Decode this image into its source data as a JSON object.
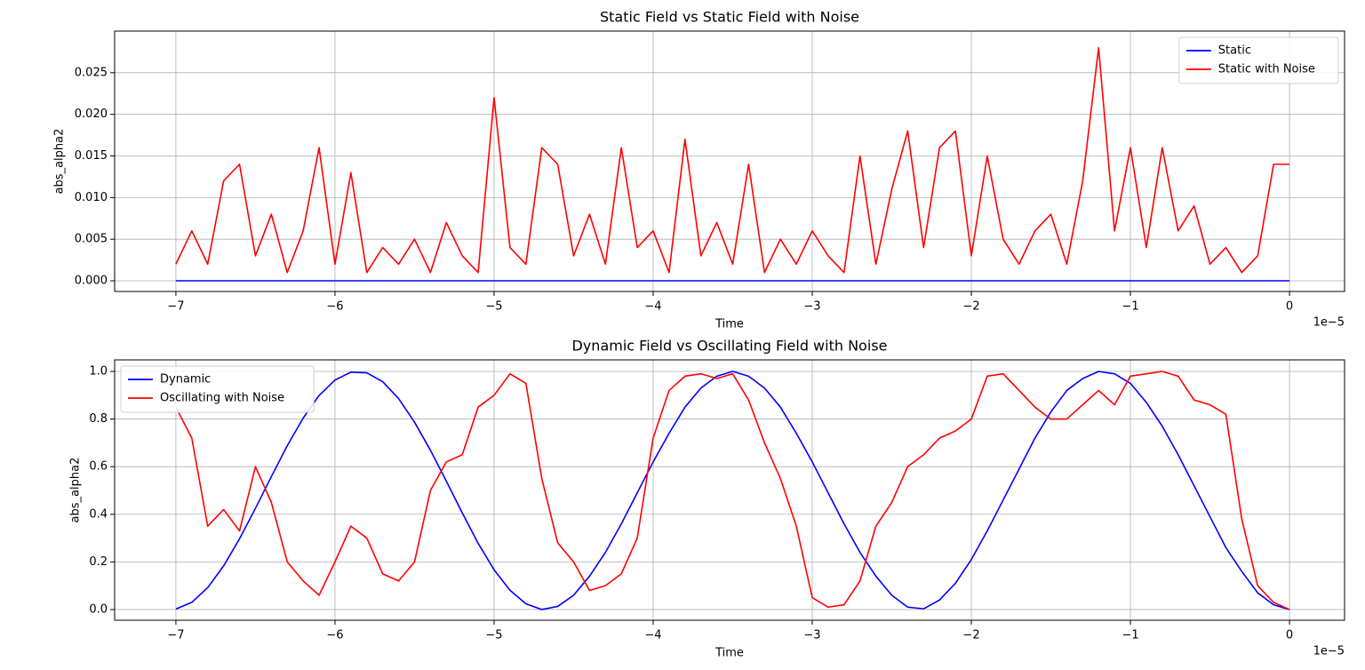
{
  "chart_data": [
    {
      "type": "line",
      "title": "Static Field vs Static Field with Noise",
      "x_label": "Time",
      "y_label": "abs_alpha2",
      "x_offset_label": "1e−5",
      "x": [
        -7.0,
        -6.9,
        -6.8,
        -6.7,
        -6.6,
        -6.5,
        -6.4,
        -6.3,
        -6.2,
        -6.1,
        -6.0,
        -5.9,
        -5.8,
        -5.7,
        -5.6,
        -5.5,
        -5.4,
        -5.3,
        -5.2,
        -5.1,
        -5.0,
        -4.9,
        -4.8,
        -4.7,
        -4.6,
        -4.5,
        -4.4,
        -4.3,
        -4.2,
        -4.1,
        -4.0,
        -3.9,
        -3.8,
        -3.7,
        -3.6,
        -3.5,
        -3.4,
        -3.3,
        -3.2,
        -3.1,
        -3.0,
        -2.9,
        -2.8,
        -2.7,
        -2.6,
        -2.5,
        -2.4,
        -2.3,
        -2.2,
        -2.1,
        -2.0,
        -1.9,
        -1.8,
        -1.7,
        -1.6,
        -1.5,
        -1.4,
        -1.3,
        -1.2,
        -1.1,
        -1.0,
        -0.9,
        -0.8,
        -0.7,
        -0.6,
        -0.5,
        -0.4,
        -0.3,
        -0.2,
        -0.1,
        0.0
      ],
      "series": [
        {
          "name": "Static",
          "color": "#0000ff",
          "values": [
            0,
            0,
            0,
            0,
            0,
            0,
            0,
            0,
            0,
            0,
            0,
            0,
            0,
            0,
            0,
            0,
            0,
            0,
            0,
            0,
            0,
            0,
            0,
            0,
            0,
            0,
            0,
            0,
            0,
            0,
            0,
            0,
            0,
            0,
            0,
            0,
            0,
            0,
            0,
            0,
            0,
            0,
            0,
            0,
            0,
            0,
            0,
            0,
            0,
            0,
            0,
            0,
            0,
            0,
            0,
            0,
            0,
            0,
            0,
            0,
            0,
            0,
            0,
            0,
            0,
            0,
            0,
            0,
            0,
            0,
            0
          ]
        },
        {
          "name": "Static with Noise",
          "color": "#ff0000",
          "values": [
            0.002,
            0.006,
            0.002,
            0.012,
            0.014,
            0.003,
            0.008,
            0.001,
            0.006,
            0.016,
            0.002,
            0.013,
            0.001,
            0.004,
            0.002,
            0.005,
            0.001,
            0.007,
            0.003,
            0.001,
            0.022,
            0.004,
            0.002,
            0.016,
            0.014,
            0.003,
            0.008,
            0.002,
            0.016,
            0.004,
            0.006,
            0.001,
            0.017,
            0.003,
            0.007,
            0.002,
            0.014,
            0.001,
            0.005,
            0.002,
            0.006,
            0.003,
            0.001,
            0.015,
            0.002,
            0.011,
            0.018,
            0.004,
            0.016,
            0.018,
            0.003,
            0.015,
            0.005,
            0.002,
            0.006,
            0.008,
            0.002,
            0.012,
            0.028,
            0.006,
            0.016,
            0.004,
            0.016,
            0.006,
            0.009,
            0.002,
            0.004,
            0.001,
            0.003,
            0.014,
            0.014
          ]
        }
      ],
      "xlim": [
        -7.385,
        0.346
      ],
      "ylim": [
        -0.00128,
        0.03
      ],
      "xticks": [
        {
          "value": -7,
          "label": "−7"
        },
        {
          "value": -6,
          "label": "−6"
        },
        {
          "value": -5,
          "label": "−5"
        },
        {
          "value": -4,
          "label": "−4"
        },
        {
          "value": -3,
          "label": "−3"
        },
        {
          "value": -2,
          "label": "−2"
        },
        {
          "value": -1,
          "label": "−1"
        },
        0
      ],
      "yticks": [
        {
          "value": 0,
          "label": "0.000"
        },
        {
          "value": 0.005,
          "label": "0.005"
        },
        {
          "value": 0.01,
          "label": "0.010"
        },
        {
          "value": 0.015,
          "label": "0.015"
        },
        {
          "value": 0.02,
          "label": "0.020"
        },
        {
          "value": 0.025,
          "label": "0.025"
        }
      ],
      "grid": true,
      "legend": "upper right"
    },
    {
      "type": "line",
      "title": "Dynamic Field vs Oscillating Field with Noise",
      "x_label": "Time",
      "y_label": "abs_alpha2",
      "x_offset_label": "1e−5",
      "x": [
        -7.0,
        -6.9,
        -6.8,
        -6.7,
        -6.6,
        -6.5,
        -6.4,
        -6.3,
        -6.2,
        -6.1,
        -6.0,
        -5.9,
        -5.8,
        -5.7,
        -5.6,
        -5.5,
        -5.4,
        -5.3,
        -5.2,
        -5.1,
        -5.0,
        -4.9,
        -4.8,
        -4.7,
        -4.6,
        -4.5,
        -4.4,
        -4.3,
        -4.2,
        -4.1,
        -4.0,
        -3.9,
        -3.8,
        -3.7,
        -3.6,
        -3.5,
        -3.4,
        -3.3,
        -3.2,
        -3.1,
        -3.0,
        -2.9,
        -2.8,
        -2.7,
        -2.6,
        -2.5,
        -2.4,
        -2.3,
        -2.2,
        -2.1,
        -2.0,
        -1.9,
        -1.8,
        -1.7,
        -1.6,
        -1.5,
        -1.4,
        -1.3,
        -1.2,
        -1.1,
        -1.0,
        -0.9,
        -0.8,
        -0.7,
        -0.6,
        -0.5,
        -0.4,
        -0.3,
        -0.2,
        -0.1,
        0.0
      ],
      "series": [
        {
          "name": "Dynamic",
          "color": "#0000ff",
          "values": [
            0.002,
            0.03,
            0.092,
            0.183,
            0.297,
            0.425,
            0.558,
            0.688,
            0.804,
            0.899,
            0.964,
            0.997,
            0.994,
            0.957,
            0.886,
            0.787,
            0.669,
            0.539,
            0.406,
            0.278,
            0.167,
            0.081,
            0.024,
            0.0,
            0.013,
            0.06,
            0.14,
            0.24,
            0.36,
            0.49,
            0.62,
            0.74,
            0.85,
            0.93,
            0.98,
            1.0,
            0.98,
            0.93,
            0.85,
            0.74,
            0.62,
            0.49,
            0.36,
            0.24,
            0.14,
            0.06,
            0.01,
            0.003,
            0.04,
            0.11,
            0.21,
            0.33,
            0.46,
            0.59,
            0.72,
            0.83,
            0.92,
            0.97,
            1.0,
            0.99,
            0.95,
            0.87,
            0.77,
            0.65,
            0.52,
            0.39,
            0.26,
            0.16,
            0.07,
            0.02,
            0.0
          ]
        },
        {
          "name": "Oscillating with Noise",
          "color": "#ff0000",
          "values": [
            0.85,
            0.72,
            0.35,
            0.42,
            0.33,
            0.6,
            0.45,
            0.2,
            0.12,
            0.06,
            0.2,
            0.35,
            0.3,
            0.15,
            0.12,
            0.2,
            0.5,
            0.62,
            0.65,
            0.85,
            0.9,
            0.99,
            0.95,
            0.55,
            0.28,
            0.2,
            0.08,
            0.1,
            0.15,
            0.3,
            0.72,
            0.92,
            0.98,
            0.99,
            0.97,
            0.99,
            0.88,
            0.7,
            0.55,
            0.35,
            0.05,
            0.01,
            0.02,
            0.12,
            0.35,
            0.45,
            0.6,
            0.65,
            0.72,
            0.75,
            0.8,
            0.98,
            0.99,
            0.92,
            0.85,
            0.8,
            0.8,
            0.86,
            0.92,
            0.86,
            0.98,
            0.99,
            1.0,
            0.98,
            0.88,
            0.86,
            0.82,
            0.38,
            0.1,
            0.03,
            0.0
          ]
        }
      ],
      "xlim": [
        -7.385,
        0.346
      ],
      "ylim": [
        -0.045,
        1.0485
      ],
      "xticks": [
        {
          "value": -7,
          "label": "−7"
        },
        {
          "value": -6,
          "label": "−6"
        },
        {
          "value": -5,
          "label": "−5"
        },
        {
          "value": -4,
          "label": "−4"
        },
        {
          "value": -3,
          "label": "−3"
        },
        {
          "value": -2,
          "label": "−2"
        },
        {
          "value": -1,
          "label": "−1"
        },
        0
      ],
      "yticks": [
        {
          "value": 0,
          "label": "0.0"
        },
        {
          "value": 0.2,
          "label": "0.2"
        },
        {
          "value": 0.4,
          "label": "0.4"
        },
        {
          "value": 0.6,
          "label": "0.6"
        },
        {
          "value": 0.8,
          "label": "0.8"
        },
        {
          "value": 1.0,
          "label": "1.0"
        }
      ],
      "grid": true,
      "legend": "upper left"
    }
  ]
}
